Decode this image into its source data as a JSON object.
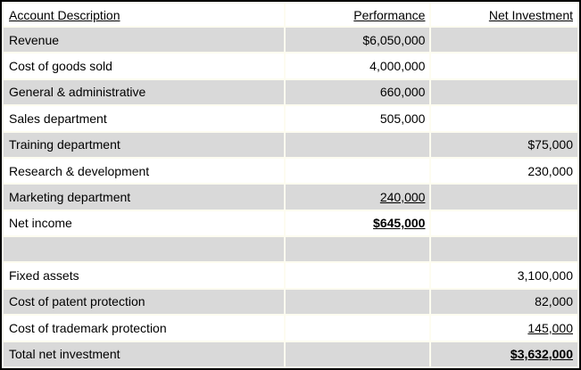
{
  "table": {
    "columns": {
      "description": "Account Description",
      "performance": "Performance",
      "net_investment": "Net Investment"
    },
    "rows": [
      {
        "label": "Revenue",
        "performance": "$6,050,000",
        "net_investment": ""
      },
      {
        "label": "Cost of goods sold",
        "performance": "4,000,000",
        "net_investment": ""
      },
      {
        "label": "General & administrative",
        "performance": "660,000",
        "net_investment": ""
      },
      {
        "label": "Sales department",
        "performance": "505,000",
        "net_investment": ""
      },
      {
        "label": "Training department",
        "performance": "",
        "net_investment": "$75,000"
      },
      {
        "label": "Research & development",
        "performance": "",
        "net_investment": "230,000"
      },
      {
        "label": "Marketing department",
        "performance": "240,000",
        "net_investment": ""
      },
      {
        "label": "Net income",
        "performance": "$645,000",
        "net_investment": ""
      },
      {
        "label": "",
        "performance": "",
        "net_investment": ""
      },
      {
        "label": "Fixed assets",
        "performance": "",
        "net_investment": "3,100,000"
      },
      {
        "label": "Cost of patent protection",
        "performance": "",
        "net_investment": "82,000"
      },
      {
        "label": "Cost of trademark protection",
        "performance": "",
        "net_investment": "145,000"
      },
      {
        "label": "Total net investment",
        "performance": "",
        "net_investment": "$3,632,000"
      }
    ]
  },
  "colors": {
    "shaded_row": "#d9d9d9",
    "row_gap_background": "#fdfcf0",
    "border": "#000000",
    "text": "#000000"
  }
}
